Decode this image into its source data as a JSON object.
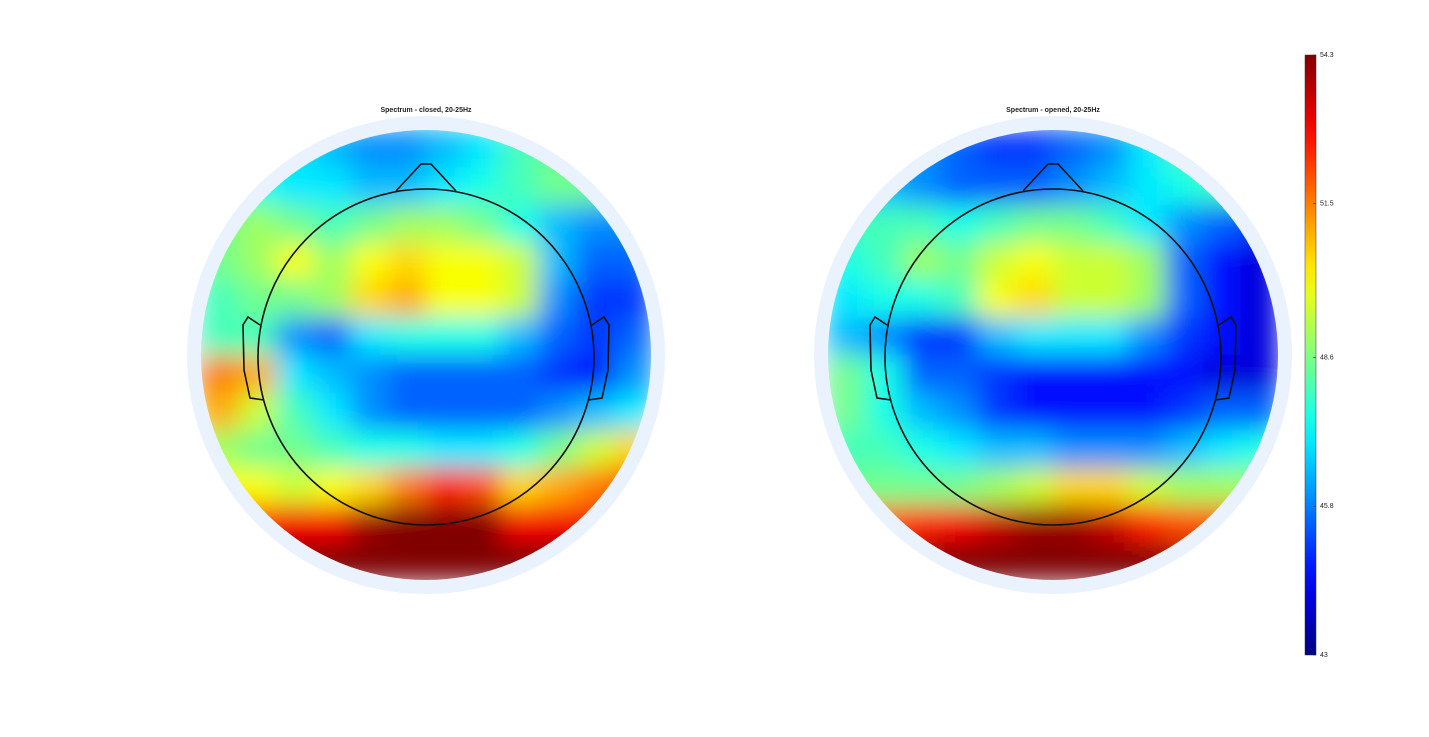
{
  "chart_data": [
    {
      "type": "topoplot",
      "title": "Spectrum - closed, 20-25Hz",
      "z": [
        [
          47,
          47,
          47,
          46.5,
          46,
          46,
          46.5,
          47,
          48,
          48.5,
          48,
          48
        ],
        [
          47.5,
          47.5,
          47,
          47,
          46.5,
          46.5,
          47,
          47.5,
          48,
          48.5,
          48.5,
          48
        ],
        [
          48.5,
          49,
          48.5,
          48,
          48.5,
          49,
          49,
          48.5,
          47.5,
          46.5,
          46,
          46
        ],
        [
          48.5,
          49,
          50,
          49,
          50,
          50.5,
          50,
          50,
          49.5,
          46.5,
          45.5,
          45.5
        ],
        [
          48,
          48.5,
          48.5,
          49,
          50.5,
          51,
          50,
          50,
          49.5,
          46,
          45,
          45
        ],
        [
          48,
          48,
          46,
          45.5,
          47,
          47.5,
          47.5,
          47.5,
          46.5,
          45.5,
          45,
          45.5
        ],
        [
          51.5,
          51,
          47,
          46.5,
          46,
          45.5,
          45.5,
          45.5,
          45.5,
          45,
          44.5,
          46
        ],
        [
          51,
          49.5,
          48,
          47,
          46,
          45.5,
          45.5,
          45.5,
          45.5,
          46,
          46.5,
          47
        ],
        [
          49,
          48.5,
          48.5,
          48,
          47.5,
          47.5,
          47,
          47,
          47.5,
          48.5,
          49.5,
          50.5
        ],
        [
          50,
          50,
          49.5,
          50,
          50.5,
          51.5,
          52.5,
          52,
          50.5,
          51,
          51.5,
          52
        ],
        [
          52.5,
          52.5,
          53,
          53,
          54,
          54.3,
          54.3,
          54.3,
          53,
          53,
          53,
          53
        ],
        [
          54,
          54.3,
          54.3,
          54.3,
          54.3,
          54.3,
          54.3,
          54.3,
          54.3,
          54.3,
          54,
          54
        ]
      ]
    },
    {
      "type": "topoplot",
      "title": "Spectrum - opened, 20-25Hz",
      "z": [
        [
          46,
          46,
          46,
          45.5,
          45,
          45,
          45.5,
          46,
          47,
          48,
          48,
          48
        ],
        [
          46.5,
          46.5,
          46,
          45.5,
          45.5,
          45.5,
          46,
          46.5,
          47,
          47.5,
          48,
          47.5
        ],
        [
          48,
          48,
          48,
          47.5,
          48,
          48.5,
          48.5,
          48,
          47,
          46,
          45.5,
          45
        ],
        [
          47.5,
          48,
          49,
          48.5,
          49.5,
          50,
          49.5,
          49.5,
          49,
          45.5,
          44.5,
          44
        ],
        [
          47,
          47.5,
          47.5,
          48,
          50,
          50.5,
          49.5,
          49.5,
          49,
          45.5,
          44.5,
          44
        ],
        [
          46.5,
          46,
          45,
          45,
          46.5,
          47,
          47,
          47,
          46,
          45,
          44.5,
          44
        ],
        [
          48.5,
          47.5,
          45.5,
          45.5,
          45,
          44.5,
          44.5,
          44.5,
          44.5,
          44.5,
          44,
          44
        ],
        [
          48.5,
          47.5,
          46.5,
          46,
          45,
          44.5,
          44.5,
          44.5,
          44.5,
          45,
          45.5,
          45.5
        ],
        [
          48,
          48,
          47.5,
          47,
          46.5,
          46.5,
          46,
          46,
          46,
          46.5,
          47,
          47.5
        ],
        [
          48.5,
          48.5,
          48.5,
          48.5,
          49,
          49.5,
          50.5,
          50.5,
          49.5,
          49,
          49,
          49
        ],
        [
          52,
          52,
          52.5,
          53,
          53.5,
          54,
          54,
          53.5,
          52.5,
          52,
          52,
          52
        ],
        [
          54,
          54.3,
          54.3,
          54.3,
          54.3,
          54.3,
          54.3,
          54.3,
          54.3,
          54,
          54,
          54
        ]
      ]
    },
    {
      "type": "colorbar",
      "ylim": [
        43,
        54.3
      ],
      "yticks": [
        43,
        45.8,
        48.6,
        51.5,
        54.3
      ]
    }
  ]
}
